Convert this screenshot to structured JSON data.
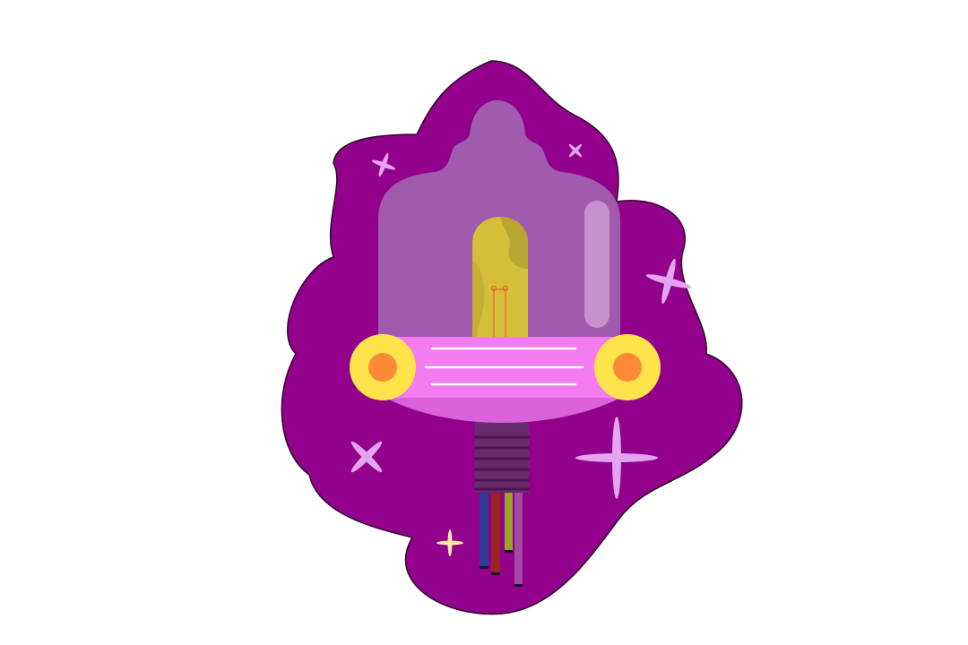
{
  "illustration": {
    "subject": "glass-tube-lamp",
    "colors": {
      "page_background": "#FFFFFF",
      "blob": "#93008C",
      "blob_outline": "#2A0A2A",
      "glass_dome": "#A05AAE",
      "glass_highlight": "#C592CF",
      "tube_yellow": "#D4BE3A",
      "tube_shade": "#B9A532",
      "filament": "#E06A2A",
      "band_pink": "#F47CF0",
      "band_shadow": "#DA62DA",
      "band_lines": "#FFFFFF",
      "cap_yellow": "#FFE34A",
      "cap_orange": "#FF8A35",
      "screw_base": "#6A2A6E",
      "screw_lines": "#4A1650",
      "wire_blue": "#2B3C96",
      "wire_red": "#9A2424",
      "wire_olive": "#9AA32C",
      "wire_purple": "#A04AA6",
      "sparkle_light": "#E2A5EE",
      "sparkle_cream": "#FFE9A6"
    },
    "wires": [
      "blue",
      "red",
      "olive",
      "purple"
    ],
    "sparkle_count": 6
  }
}
